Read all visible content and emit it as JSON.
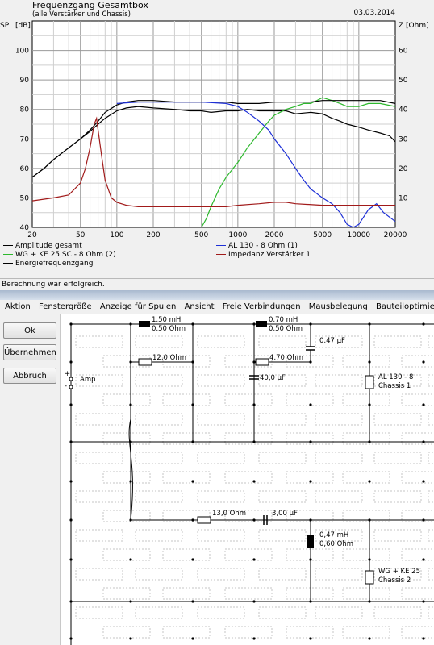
{
  "graph": {
    "title": "Frequenzgang Gesamtbox",
    "subtitle": "(alle Verstärker und Chassis)",
    "date": "03.03.2014"
  },
  "chart_data": {
    "type": "line",
    "ylabel_left": "SPL [dB]",
    "ylabel_right": "Z [Ohm]",
    "x_scale": "log",
    "xlim": [
      20,
      20000
    ],
    "ylim_left": [
      40,
      110
    ],
    "ylim_right": [
      0,
      70
    ],
    "x_ticks": [
      "20",
      "50",
      "100",
      "200",
      "500",
      "1000",
      "2000",
      "5000",
      "10000",
      "20000"
    ],
    "y_ticks_left": [
      "40",
      "50",
      "60",
      "70",
      "80",
      "90",
      "100"
    ],
    "y_ticks_right": [
      "10",
      "20",
      "30",
      "40",
      "50",
      "60"
    ],
    "grid": true,
    "series": [
      {
        "name": "Amplitude gesamt",
        "color": "#000000",
        "axis": "left",
        "x": [
          20,
          25,
          30,
          40,
          50,
          60,
          70,
          80,
          100,
          120,
          150,
          200,
          300,
          400,
          500,
          600,
          800,
          1000,
          1200,
          1500,
          2000,
          2500,
          3000,
          4000,
          5000,
          6000,
          7000,
          8000,
          10000,
          12000,
          15000,
          18000,
          20000
        ],
        "y": [
          57,
          60,
          63,
          67,
          70,
          72.5,
          75,
          77,
          79.5,
          80.5,
          81,
          80.5,
          80,
          79.5,
          79.5,
          79,
          79.5,
          79.5,
          80,
          79.5,
          79.5,
          79.5,
          78.5,
          79,
          78.5,
          77,
          76,
          75,
          74,
          73,
          72,
          71,
          69
        ]
      },
      {
        "name": "WG + KE 25 SC - 8 Ohm (2)",
        "color": "#2db82d",
        "axis": "left",
        "x": [
          500,
          550,
          600,
          700,
          800,
          1000,
          1200,
          1500,
          1800,
          2000,
          2500,
          3000,
          3500,
          4000,
          4500,
          5000,
          6000,
          7000,
          8000,
          10000,
          12000,
          15000,
          20000
        ],
        "y": [
          40,
          43,
          47,
          53,
          57,
          62,
          67,
          72,
          76,
          78,
          80,
          81,
          82,
          82,
          83,
          84,
          83,
          82,
          81,
          81,
          82,
          82,
          81
        ]
      },
      {
        "name": "Energiefrequenzgang",
        "color": "#000000",
        "axis": "left",
        "x": [
          20,
          25,
          30,
          40,
          50,
          60,
          70,
          80,
          100,
          120,
          150,
          200,
          300,
          400,
          500,
          600,
          800,
          1000,
          1500,
          2000,
          2500,
          3000,
          4000,
          5000,
          6000,
          8000,
          10000,
          12000,
          15000,
          20000
        ],
        "y": [
          57,
          60,
          63,
          67,
          70,
          73,
          76,
          79,
          81.5,
          82.5,
          83,
          83,
          82.5,
          82.5,
          82.5,
          82.5,
          82.5,
          82,
          82,
          82.5,
          82.5,
          82.5,
          82.5,
          83,
          83,
          83,
          83,
          83,
          83,
          82
        ]
      },
      {
        "name": "AL 130 - 8 Ohm (1)",
        "color": "#1d2fd6",
        "axis": "left",
        "x": [
          100,
          150,
          200,
          300,
          500,
          800,
          1000,
          1200,
          1500,
          1800,
          2000,
          2500,
          3000,
          3500,
          4000,
          5000,
          6000,
          7000,
          8000,
          9000,
          10000,
          12000,
          14000,
          16000,
          20000
        ],
        "y": [
          82,
          82.5,
          82.5,
          82.5,
          82.5,
          82,
          81,
          79,
          76,
          73,
          70,
          65,
          60,
          56,
          53,
          50,
          48,
          45,
          41,
          40,
          41,
          46,
          48,
          45,
          42
        ]
      },
      {
        "name": "Impedanz Verstärker 1",
        "color": "#a11a1a",
        "axis": "right",
        "x": [
          20,
          30,
          40,
          50,
          55,
          60,
          65,
          68,
          70,
          75,
          80,
          90,
          100,
          120,
          150,
          200,
          300,
          500,
          800,
          1000,
          1500,
          2000,
          2500,
          3000,
          5000,
          10000,
          20000
        ],
        "y": [
          9,
          10,
          11,
          15,
          20,
          27,
          35,
          37,
          33,
          24,
          16,
          10,
          8.5,
          7.5,
          7,
          7,
          7,
          7,
          7,
          7.5,
          8,
          8.5,
          8.5,
          8,
          7.5,
          7.5,
          7.5
        ]
      }
    ]
  },
  "legend": {
    "amplitude": "Amplitude gesamt",
    "wg": "WG + KE 25 SC - 8 Ohm (2)",
    "energie": "Energiefrequenzgang",
    "al130": "AL 130 - 8 Ohm (1)",
    "impedanz": "Impedanz Verstärker 1"
  },
  "status": "Berechnung war erfolgreich.",
  "menu": [
    "Aktion",
    "Fenstergröße",
    "Anzeige für Spulen",
    "Ansicht",
    "Freie Verbindungen",
    "Mausbelegung",
    "Bauteiloptimierung"
  ],
  "buttons": {
    "ok": "Ok",
    "apply": "Übernehmen",
    "cancel": "Abbruch"
  },
  "schematic": {
    "amp_label": "Amp",
    "plus": "+",
    "minus": "-",
    "l1_value": "1,50 mH",
    "l1_res": "0,50 Ohm",
    "r1": "12,0 Ohm",
    "l2_value": "0,70 mH",
    "l2_res": "0,50 Ohm",
    "c1": "0,47 µF",
    "r2": "4,70 Ohm",
    "c2": "40,0 µF",
    "chassis1_name": "AL 130 - 8",
    "chassis1_label": "Chassis 1",
    "r3": "13,0 Ohm",
    "c3": "3,00 µF",
    "l3_value": "0,47 mH",
    "l3_res": "0,60 Ohm",
    "chassis2_name": "WG + KE 25",
    "chassis2_label": "Chassis 2"
  }
}
